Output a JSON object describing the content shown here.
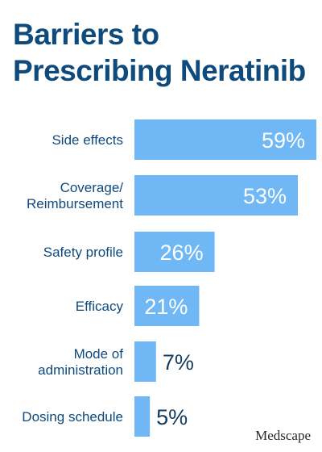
{
  "chart_data": {
    "type": "bar",
    "orientation": "horizontal",
    "title": "Barriers to Prescribing Neratinib",
    "title_lines": [
      "Barriers to",
      "Prescribing Neratinib"
    ],
    "unit": "%",
    "xlim": [
      0,
      60
    ],
    "grid": false,
    "legend": "none",
    "bar_color": "#6fb8f5",
    "categories": [
      [
        "Side effects"
      ],
      [
        "Coverage/",
        "Reimbursement"
      ],
      [
        "Safety profile"
      ],
      [
        "Efficacy"
      ],
      [
        "Mode of",
        "administration"
      ],
      [
        "Dosing schedule"
      ]
    ],
    "values": [
      59,
      53,
      26,
      21,
      7,
      5
    ],
    "value_labels": [
      "59%",
      "53%",
      "26%",
      "21%",
      "7%",
      "5%"
    ]
  },
  "logo_text": "Medscape"
}
